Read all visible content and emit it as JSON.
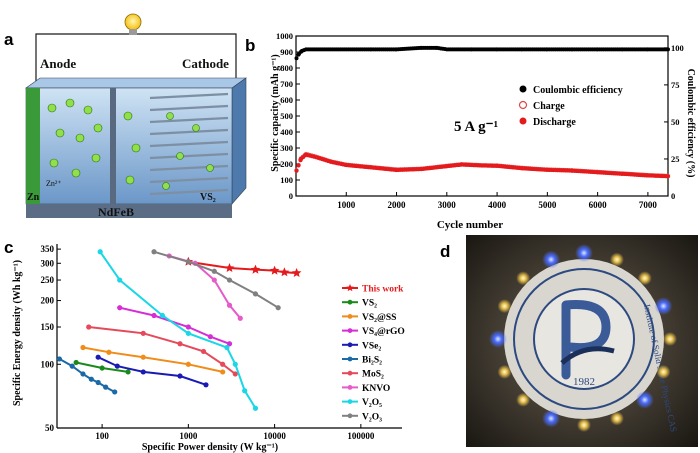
{
  "panel_a": {
    "letter": "a",
    "anode_label": "Anode",
    "cathode_label": "Cathode",
    "separator_label": "NdFeB",
    "zn_label": "Zn",
    "vs2_label": "VS₂",
    "zn_ion_label": "Zn²⁺"
  },
  "panel_b": {
    "letter": "b",
    "annotation": "5 A g⁻¹",
    "legend": [
      "Coulombic efficiency",
      "Charge",
      "Discharge"
    ]
  },
  "panel_c": {
    "letter": "c"
  },
  "panel_d": {
    "letter": "d",
    "logo_year": "1982",
    "logo_text": "Institute of Solid State Physics CAS"
  },
  "chart_data": [
    {
      "type": "scatter",
      "panel": "b",
      "xlabel": "Cycle number",
      "ylabel": "Specific capacity (mAh g⁻¹)",
      "ylabel_right": "Coulombic efficiency (%)",
      "xlim": [
        0,
        7400
      ],
      "ylim": [
        0,
        1000
      ],
      "ylim_right": [
        0,
        108
      ],
      "xticks": [
        1000,
        2000,
        3000,
        4000,
        5000,
        6000,
        7000
      ],
      "yticks": [
        0,
        100,
        200,
        300,
        400,
        500,
        600,
        700,
        800,
        900,
        1000
      ],
      "yticks_right": [
        0,
        25,
        50,
        75,
        100
      ],
      "series": [
        {
          "name": "Coulombic efficiency",
          "color": "#000000",
          "axis": "right",
          "x": [
            10,
            60,
            120,
            200,
            400,
            800,
            1500,
            2000,
            2500,
            2800,
            3000,
            3500,
            4000,
            4500,
            5000,
            5500,
            6000,
            6500,
            7000,
            7400
          ],
          "y": [
            93,
            96,
            98,
            99,
            99,
            99,
            99,
            99,
            100,
            100,
            99,
            99,
            99,
            99,
            99,
            99,
            99,
            99,
            99,
            99
          ]
        },
        {
          "name": "Charge",
          "color": "#e04848",
          "axis": "left",
          "x": [
            10,
            100,
            200,
            400,
            700,
            1000,
            1500,
            2000,
            2500,
            3000,
            3300,
            3700,
            4000,
            4500,
            5000,
            5500,
            6000,
            6500,
            7000,
            7400
          ],
          "y": [
            160,
            235,
            262,
            245,
            215,
            195,
            180,
            165,
            170,
            188,
            198,
            192,
            190,
            175,
            165,
            160,
            150,
            140,
            130,
            125
          ]
        },
        {
          "name": "Discharge",
          "color": "#e41a1c",
          "axis": "left",
          "x": [
            10,
            100,
            200,
            400,
            700,
            1000,
            1500,
            2000,
            2500,
            3000,
            3300,
            3700,
            4000,
            4500,
            5000,
            5500,
            6000,
            6500,
            7000,
            7400
          ],
          "y": [
            158,
            232,
            258,
            242,
            213,
            193,
            178,
            162,
            168,
            186,
            196,
            190,
            188,
            173,
            163,
            158,
            148,
            138,
            128,
            123
          ]
        }
      ]
    },
    {
      "type": "line",
      "panel": "c",
      "xlabel": "Specific Power density (W kg⁻¹)",
      "ylabel": "Specific Energy density (Wh kg⁻¹)",
      "xscale": "log",
      "yscale": "log",
      "xlim": [
        30,
        300000
      ],
      "ylim": [
        50,
        370
      ],
      "xticks": [
        100,
        1000,
        10000,
        100000
      ],
      "yticks": [
        50,
        100,
        150,
        200,
        250,
        300,
        350
      ],
      "series": [
        {
          "name": "This work",
          "color": "#e41a1c",
          "marker": "star",
          "x": [
            1000,
            3000,
            6000,
            10000,
            13000,
            18000
          ],
          "y": [
            305,
            285,
            280,
            277,
            272,
            270
          ]
        },
        {
          "name": "VS₂",
          "color": "#1a8a1a",
          "marker": "circle",
          "x": [
            50,
            100,
            200
          ],
          "y": [
            102,
            96,
            92
          ]
        },
        {
          "name": "VS₂@SS",
          "color": "#f08c1a",
          "marker": "circle",
          "x": [
            60,
            120,
            300,
            1000,
            2500
          ],
          "y": [
            120,
            114,
            108,
            100,
            92
          ]
        },
        {
          "name": "VS₄@rGO",
          "color": "#d62dd6",
          "marker": "circle",
          "x": [
            160,
            400,
            1000,
            1800,
            3000
          ],
          "y": [
            185,
            170,
            150,
            135,
            125
          ]
        },
        {
          "name": "VSe₂",
          "color": "#1a1ab4",
          "marker": "circle",
          "x": [
            90,
            150,
            300,
            800,
            1600
          ],
          "y": [
            108,
            98,
            92,
            88,
            80
          ]
        },
        {
          "name": "Bi₂S₂",
          "color": "#1a6aa8",
          "marker": "circle",
          "x": [
            32,
            45,
            60,
            75,
            90,
            110,
            140
          ],
          "y": [
            106,
            98,
            90,
            85,
            82,
            78,
            74
          ]
        },
        {
          "name": "MoS₂",
          "color": "#e64a5a",
          "marker": "circle",
          "x": [
            70,
            300,
            800,
            1500,
            2500,
            3500
          ],
          "y": [
            150,
            140,
            125,
            115,
            100,
            90
          ]
        },
        {
          "name": "KNVO",
          "color": "#e65aca",
          "marker": "circle",
          "x": [
            600,
            1200,
            2000,
            3000,
            4000
          ],
          "y": [
            325,
            300,
            250,
            190,
            165
          ]
        },
        {
          "name": "V₂O₅",
          "color": "#1ad6e6",
          "marker": "circle",
          "x": [
            95,
            160,
            500,
            1000,
            2800,
            3500,
            4500,
            6000
          ],
          "y": [
            340,
            250,
            170,
            140,
            120,
            100,
            75,
            62
          ]
        },
        {
          "name": "V₂O₃",
          "color": "#808080",
          "marker": "circle",
          "x": [
            400,
            1000,
            2000,
            3000,
            6000,
            11000
          ],
          "y": [
            340,
            305,
            275,
            250,
            215,
            185
          ]
        }
      ]
    }
  ]
}
